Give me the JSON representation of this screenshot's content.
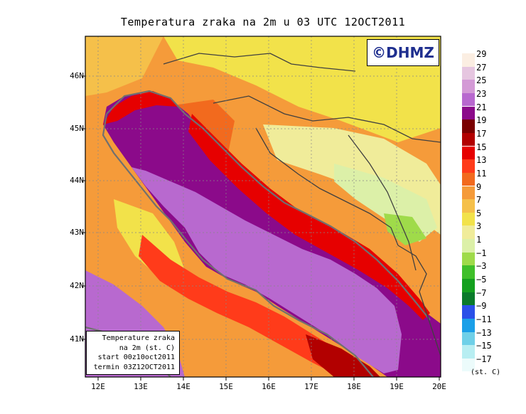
{
  "title": "Temperatura zraka na 2m u 03 UTC 12OCT2011",
  "logo": "©DHMZ",
  "info_box": {
    "line1": "Temperature zraka",
    "line2": "na 2m (st. C)",
    "line3": "start 00z10oct2011",
    "line4": "termin 03Z12OCT2011"
  },
  "lat_labels": [
    "46N",
    "45N",
    "44N",
    "43N",
    "42N",
    "41N"
  ],
  "lon_labels": [
    "12E",
    "13E",
    "14E",
    "15E",
    "16E",
    "17E",
    "18E",
    "19E",
    "20E"
  ],
  "legend": {
    "unit": "(st. C)",
    "labels": [
      "29",
      "27",
      "25",
      "23",
      "21",
      "19",
      "17",
      "15",
      "13",
      "11",
      "9",
      "7",
      "5",
      "3",
      "1",
      "−1",
      "−3",
      "−5",
      "−7",
      "−9",
      "−11",
      "−13",
      "−15",
      "−17"
    ],
    "colors": [
      "#fbeee2",
      "#e6c6e0",
      "#d49ad6",
      "#b869cf",
      "#8b0a8a",
      "#7a0000",
      "#b20000",
      "#e60000",
      "#ff3b1a",
      "#f26a1e",
      "#f59b3a",
      "#f5c04a",
      "#f2e24a",
      "#f0ec9a",
      "#dcf0a8",
      "#9fdb4a",
      "#3fbf2a",
      "#14a01e",
      "#0a7a2a",
      "#2a50e8",
      "#1a9fe8",
      "#6fd0e8",
      "#b8eef2",
      "#ecfbfb"
    ]
  },
  "chart_data": {
    "type": "heatmap",
    "title": "Temperatura zraka na 2m u 03 UTC 12OCT2011",
    "units": "st. C",
    "lon_range": [
      11.8,
      20.0
    ],
    "lat_range": [
      40.3,
      46.75
    ],
    "color_scale_levels": [
      -17,
      -15,
      -13,
      -11,
      -9,
      -7,
      -5,
      -3,
      -1,
      1,
      3,
      5,
      7,
      9,
      11,
      13,
      15,
      17,
      19,
      21,
      23,
      25,
      27,
      29
    ]
  }
}
